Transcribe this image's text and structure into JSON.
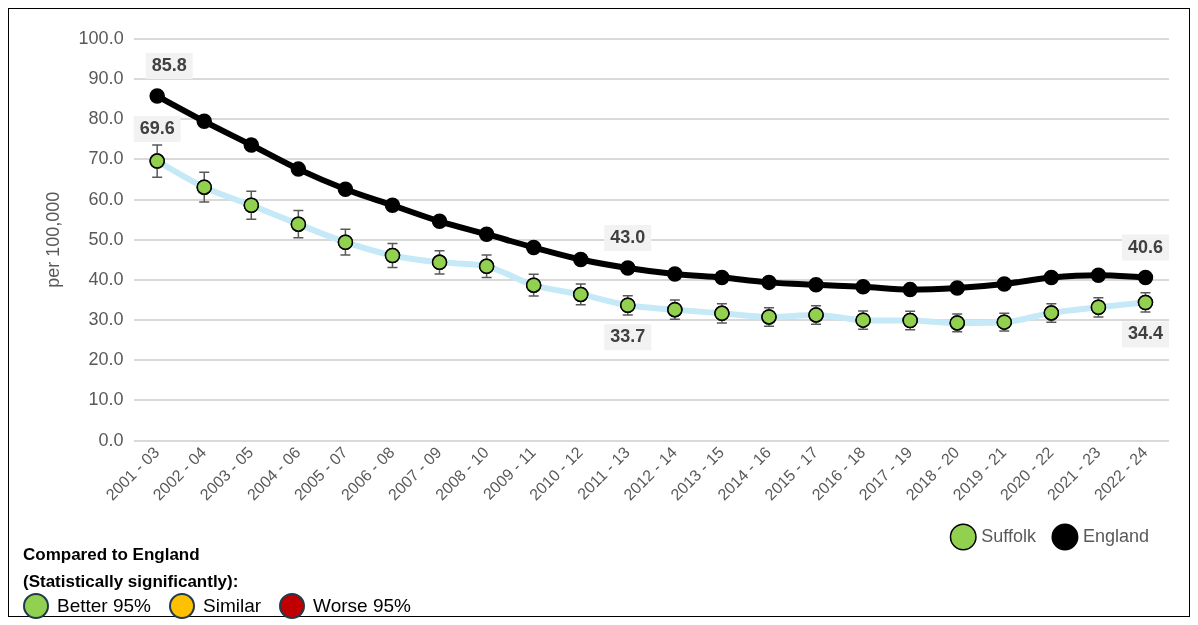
{
  "chart_data": {
    "type": "line",
    "ylabel": "per 100,000",
    "categories": [
      "2001 - 03",
      "2002 - 04",
      "2003 - 05",
      "2004 - 06",
      "2005 - 07",
      "2006 - 08",
      "2007 - 09",
      "2008 - 10",
      "2009 - 11",
      "2010 - 12",
      "2011 - 13",
      "2012 - 14",
      "2013 - 15",
      "2014 - 16",
      "2015 - 17",
      "2016 - 18",
      "2017 - 19",
      "2018 - 20",
      "2019 - 21",
      "2020 - 22",
      "2021 - 23",
      "2022 - 24"
    ],
    "series": [
      {
        "name": "Suffolk",
        "color": "#c6e9f8",
        "colors": [
          "#92d050",
          "#92d050",
          "#92d050",
          "#92d050",
          "#92d050",
          "#92d050",
          "#92d050",
          "#92d050",
          "#92d050",
          "#92d050",
          "#92d050",
          "#92d050",
          "#92d050",
          "#92d050",
          "#92d050",
          "#92d050",
          "#92d050",
          "#92d050",
          "#92d050",
          "#92d050",
          "#92d050",
          "#92d050"
        ],
        "values": [
          69.6,
          63.1,
          58.6,
          53.9,
          49.4,
          46.1,
          44.4,
          43.4,
          38.7,
          36.4,
          33.7,
          32.6,
          31.7,
          30.8,
          31.3,
          30.0,
          29.9,
          29.3,
          29.5,
          31.8,
          33.2,
          34.4
        ],
        "errors": [
          4.0,
          3.7,
          3.5,
          3.4,
          3.2,
          3.0,
          2.9,
          2.8,
          2.7,
          2.6,
          2.4,
          2.4,
          2.4,
          2.3,
          2.3,
          2.3,
          2.3,
          2.2,
          2.2,
          2.3,
          2.4,
          2.4
        ],
        "value_labels": [
          "69.6",
          null,
          null,
          null,
          null,
          null,
          null,
          null,
          null,
          null,
          "33.7",
          null,
          null,
          null,
          null,
          null,
          null,
          null,
          null,
          null,
          null,
          "34.4"
        ]
      },
      {
        "name": "England",
        "color": "#000000",
        "values": [
          85.8,
          79.5,
          73.6,
          67.6,
          62.6,
          58.6,
          54.6,
          51.4,
          48.1,
          45.1,
          43.0,
          41.5,
          40.6,
          39.4,
          38.8,
          38.3,
          37.6,
          38.0,
          39.0,
          40.6,
          41.2,
          40.6
        ],
        "value_labels": [
          "85.8",
          null,
          null,
          null,
          null,
          null,
          null,
          null,
          null,
          null,
          "43.0",
          null,
          null,
          null,
          null,
          null,
          null,
          null,
          null,
          null,
          null,
          "40.6"
        ]
      }
    ],
    "ylim": [
      0,
      100
    ],
    "yticks": [
      {
        "value": 0,
        "label": "0.0"
      },
      {
        "value": 10,
        "label": "10.0"
      },
      {
        "value": 20,
        "label": "20.0"
      },
      {
        "value": 30,
        "label": "30.0"
      },
      {
        "value": 40,
        "label": "40.0"
      },
      {
        "value": 50,
        "label": "50.0"
      },
      {
        "value": 60,
        "label": "60.0"
      },
      {
        "value": 70,
        "label": "70.0"
      },
      {
        "value": 80,
        "label": "80.0"
      },
      {
        "value": 90,
        "label": "90.0"
      },
      {
        "value": 100,
        "label": "100.0"
      }
    ],
    "grid": "y",
    "legend": "bottom right",
    "marker": "circle",
    "line_style": "solid",
    "annotations": [
      "Compared to England",
      "(Statistically significantly):",
      "Better 95%",
      "Similar",
      "Worse 95%"
    ]
  }
}
